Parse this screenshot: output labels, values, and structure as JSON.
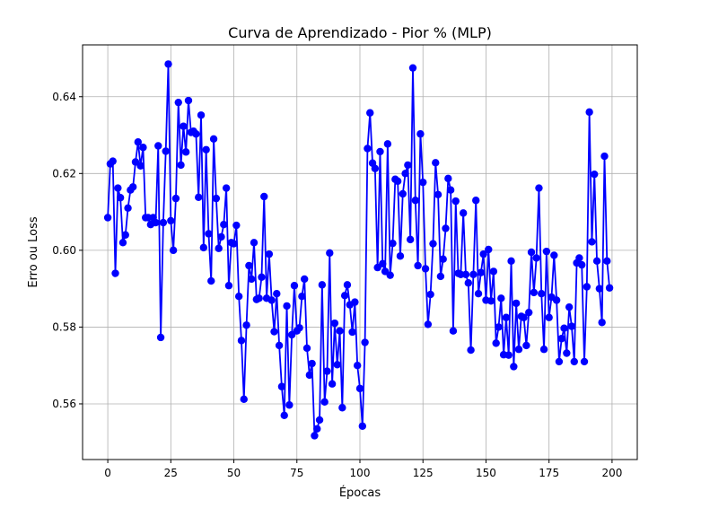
{
  "chart_data": {
    "type": "line",
    "title": "Curva de Aprendizado - Pior % (MLP)",
    "xlabel": "Épocas",
    "ylabel": "Erro ou Loss",
    "xlim": [
      -10,
      210
    ],
    "ylim": [
      0.5455,
      0.6535
    ],
    "xticks": [
      0,
      25,
      50,
      75,
      100,
      125,
      150,
      175,
      200
    ],
    "yticks": [
      0.56,
      0.58,
      0.6,
      0.62,
      0.64
    ],
    "ytick_labels": [
      "0.56",
      "0.58",
      "0.60",
      "0.62",
      "0.64"
    ],
    "grid": true,
    "line_color": "#0000ff",
    "marker": "circle",
    "series": [
      {
        "values": [
          0.6085,
          0.6225,
          0.6232,
          0.594,
          0.6162,
          0.6137,
          0.602,
          0.604,
          0.611,
          0.6157,
          0.6165,
          0.623,
          0.6282,
          0.622,
          0.6268,
          0.6085,
          0.6085,
          0.6067,
          0.6085,
          0.6072,
          0.6272,
          0.5773,
          0.6072,
          0.6258,
          0.6485,
          0.6077,
          0.6,
          0.6135,
          0.6385,
          0.6222,
          0.6323,
          0.6256,
          0.639,
          0.6307,
          0.631,
          0.6303,
          0.6138,
          0.6352,
          0.6007,
          0.6262,
          0.6043,
          0.592,
          0.629,
          0.6135,
          0.6005,
          0.6035,
          0.6067,
          0.6162,
          0.5908,
          0.602,
          0.6017,
          0.6065,
          0.588,
          0.5765,
          0.5612,
          0.5805,
          0.596,
          0.5925,
          0.602,
          0.5872,
          0.5875,
          0.593,
          0.614,
          0.5875,
          0.599,
          0.587,
          0.5788,
          0.5887,
          0.5752,
          0.5645,
          0.557,
          0.5855,
          0.5597,
          0.578,
          0.5908,
          0.579,
          0.5798,
          0.588,
          0.5925,
          0.5745,
          0.5675,
          0.5705,
          0.5517,
          0.5535,
          0.5558,
          0.591,
          0.5605,
          0.5685,
          0.5993,
          0.5652,
          0.581,
          0.5702,
          0.579,
          0.559,
          0.5882,
          0.591,
          0.5858,
          0.5787,
          0.5865,
          0.57,
          0.564,
          0.5542,
          0.576,
          0.6265,
          0.6358,
          0.6227,
          0.6213,
          0.5955,
          0.6257,
          0.5965,
          0.5945,
          0.6277,
          0.5935,
          0.6018,
          0.6185,
          0.618,
          0.5985,
          0.6147,
          0.62,
          0.6222,
          0.6028,
          0.6475,
          0.613,
          0.596,
          0.6303,
          0.6177,
          0.5952,
          0.5807,
          0.5885,
          0.6017,
          0.6228,
          0.6145,
          0.5932,
          0.5977,
          0.6057,
          0.6187,
          0.6157,
          0.579,
          0.6128,
          0.594,
          0.5937,
          0.6097,
          0.5937,
          0.5915,
          0.574,
          0.5937,
          0.613,
          0.5887,
          0.5942,
          0.599,
          0.587,
          0.6002,
          0.5868,
          0.5945,
          0.5758,
          0.58,
          0.5875,
          0.5728,
          0.5825,
          0.5727,
          0.5972,
          0.5697,
          0.5862,
          0.5742,
          0.5828,
          0.5825,
          0.5752,
          0.5838,
          0.5995,
          0.589,
          0.598,
          0.6162,
          0.5887,
          0.5742,
          0.5997,
          0.5825,
          0.5878,
          0.5987,
          0.587,
          0.571,
          0.577,
          0.5797,
          0.5732,
          0.5852,
          0.5802,
          0.571,
          0.5967,
          0.598,
          0.5962,
          0.571,
          0.5905,
          0.636,
          0.6022,
          0.6198,
          0.5972,
          0.59,
          0.5812,
          0.6245,
          0.5972,
          0.5902
        ]
      }
    ]
  }
}
